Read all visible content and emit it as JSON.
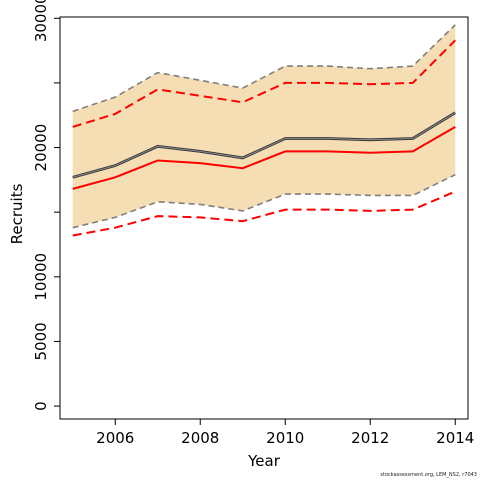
{
  "chart_data": {
    "type": "line",
    "title": "",
    "xlabel": "Year",
    "ylabel": "Recruits",
    "x": [
      2005,
      2006,
      2007,
      2008,
      2009,
      2010,
      2011,
      2012,
      2013,
      2014
    ],
    "xlim": [
      2004.7,
      2014.3
    ],
    "ylim": [
      -1000,
      30100
    ],
    "x_ticks": [
      2006,
      2008,
      2010,
      2012,
      2014
    ],
    "y_ticks": [
      0,
      5000,
      10000,
      20000,
      30000
    ],
    "y_minor_ticks": [
      15000,
      25000
    ],
    "grid": false,
    "series": [
      {
        "role": "band_upper",
        "style": "grey dashed",
        "values": [
          22800,
          23900,
          25800,
          25200,
          24600,
          26300,
          26300,
          26100,
          26300,
          29500
        ]
      },
      {
        "role": "band_lower",
        "style": "grey dashed",
        "values": [
          13800,
          14600,
          15800,
          15600,
          15100,
          16400,
          16400,
          16300,
          16300,
          17900
        ]
      },
      {
        "role": "estimate",
        "style": "dark solid",
        "values": [
          17700,
          18600,
          20100,
          19700,
          19200,
          20700,
          20700,
          20600,
          20700,
          22700
        ]
      },
      {
        "role": "alt_estimate",
        "style": "red solid",
        "values": [
          16800,
          17700,
          19000,
          18800,
          18400,
          19700,
          19700,
          19600,
          19700,
          21600
        ]
      },
      {
        "role": "alt_upper",
        "style": "red dashed",
        "values": [
          21600,
          22600,
          24500,
          24000,
          23500,
          25000,
          25000,
          24900,
          25000,
          28300
        ]
      },
      {
        "role": "alt_lower",
        "style": "red dashed",
        "values": [
          13200,
          13800,
          14700,
          14600,
          14300,
          15200,
          15200,
          15100,
          15200,
          16600
        ]
      }
    ],
    "colors": {
      "band_fill": "#f5deb3",
      "band_line": "#7f7f7f",
      "estimate": "#3a3a3a",
      "alt": "#ff0000",
      "axis": "#000000"
    }
  },
  "footnote": "stockassessment.org, LEM_NS2, r7043"
}
